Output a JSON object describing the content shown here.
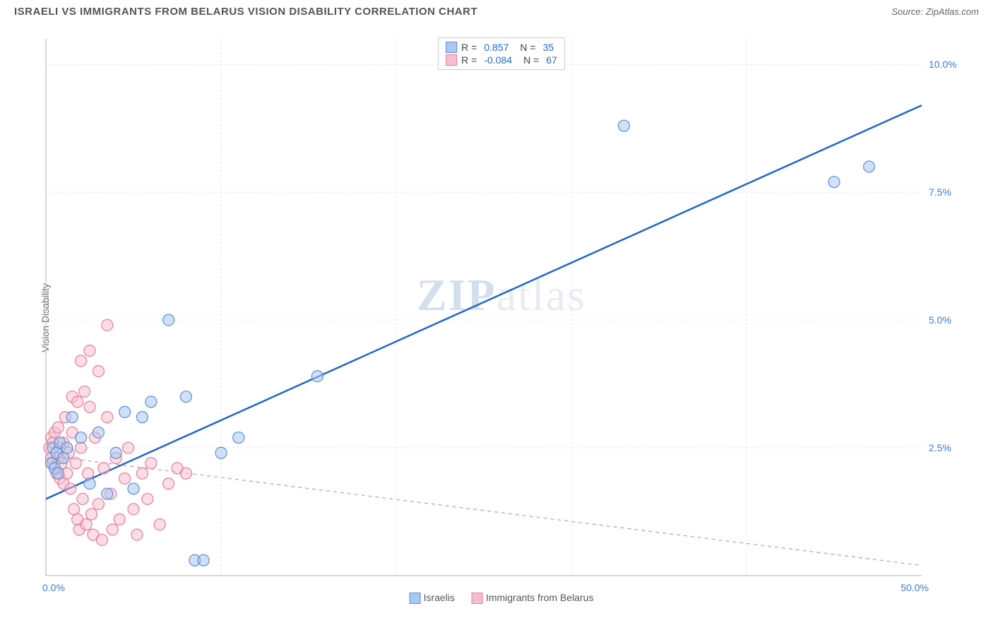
{
  "title": "ISRAELI VS IMMIGRANTS FROM BELARUS VISION DISABILITY CORRELATION CHART",
  "source_label": "Source: ",
  "source_name": "ZipAtlas.com",
  "ylabel": "Vision Disability",
  "watermark": {
    "bold": "ZIP",
    "light": "atlas"
  },
  "chart": {
    "type": "scatter",
    "xlim": [
      0,
      50
    ],
    "ylim": [
      0,
      10.5
    ],
    "x_ticks": [
      0,
      50
    ],
    "x_tick_labels": [
      "0.0%",
      "50.0%"
    ],
    "y_ticks": [
      2.5,
      5.0,
      7.5,
      10.0
    ],
    "y_tick_labels": [
      "2.5%",
      "5.0%",
      "7.5%",
      "10.0%"
    ],
    "grid_color": "#e5e5e5",
    "axis_color": "#cccccc",
    "tick_label_color": "#3b78d8",
    "background": "#ffffff",
    "marker_radius": 8,
    "marker_stroke_width": 1.2,
    "series": [
      {
        "name": "Israelis",
        "fill": "#a9c7f0",
        "stroke": "#5a8fd6",
        "fill_opacity": 0.55,
        "R": "0.857",
        "N": "35",
        "trend": {
          "x1": 0,
          "y1": 1.5,
          "x2": 50,
          "y2": 9.2,
          "color": "#1e66d0",
          "width": 2.5,
          "dash": "none"
        },
        "points": [
          [
            0.3,
            2.2
          ],
          [
            0.4,
            2.5
          ],
          [
            0.5,
            2.1
          ],
          [
            0.6,
            2.4
          ],
          [
            0.7,
            2.0
          ],
          [
            0.8,
            2.6
          ],
          [
            1.0,
            2.3
          ],
          [
            1.2,
            2.5
          ],
          [
            1.5,
            3.1
          ],
          [
            2.0,
            2.7
          ],
          [
            2.5,
            1.8
          ],
          [
            3.0,
            2.8
          ],
          [
            3.5,
            1.6
          ],
          [
            4.0,
            2.4
          ],
          [
            4.5,
            3.2
          ],
          [
            5.0,
            1.7
          ],
          [
            5.5,
            3.1
          ],
          [
            6.0,
            3.4
          ],
          [
            7.0,
            5.0
          ],
          [
            8.0,
            3.5
          ],
          [
            8.5,
            0.3
          ],
          [
            9.0,
            0.3
          ],
          [
            10.0,
            2.4
          ],
          [
            11.0,
            2.7
          ],
          [
            15.5,
            3.9
          ],
          [
            33.0,
            8.8
          ],
          [
            45.0,
            7.7
          ],
          [
            47.0,
            8.0
          ]
        ]
      },
      {
        "name": "Immigrants from Belarus",
        "fill": "#f7bdcb",
        "stroke": "#e77a9a",
        "fill_opacity": 0.5,
        "R": "-0.084",
        "N": "67",
        "trend": {
          "x1": 0,
          "y1": 2.35,
          "x2": 50,
          "y2": 0.2,
          "color": "#e88aa5",
          "width": 1.2,
          "dash": "5,5"
        },
        "points": [
          [
            0.2,
            2.5
          ],
          [
            0.3,
            2.3
          ],
          [
            0.3,
            2.7
          ],
          [
            0.4,
            2.2
          ],
          [
            0.4,
            2.6
          ],
          [
            0.5,
            2.1
          ],
          [
            0.5,
            2.8
          ],
          [
            0.6,
            2.0
          ],
          [
            0.6,
            2.4
          ],
          [
            0.7,
            2.3
          ],
          [
            0.7,
            2.9
          ],
          [
            0.8,
            1.9
          ],
          [
            0.8,
            2.5
          ],
          [
            0.9,
            2.2
          ],
          [
            1.0,
            2.6
          ],
          [
            1.0,
            1.8
          ],
          [
            1.1,
            3.1
          ],
          [
            1.2,
            2.0
          ],
          [
            1.3,
            2.4
          ],
          [
            1.4,
            1.7
          ],
          [
            1.5,
            2.8
          ],
          [
            1.5,
            3.5
          ],
          [
            1.6,
            1.3
          ],
          [
            1.7,
            2.2
          ],
          [
            1.8,
            1.1
          ],
          [
            1.8,
            3.4
          ],
          [
            1.9,
            0.9
          ],
          [
            2.0,
            2.5
          ],
          [
            2.0,
            4.2
          ],
          [
            2.1,
            1.5
          ],
          [
            2.2,
            3.6
          ],
          [
            2.3,
            1.0
          ],
          [
            2.4,
            2.0
          ],
          [
            2.5,
            3.3
          ],
          [
            2.5,
            4.4
          ],
          [
            2.6,
            1.2
          ],
          [
            2.7,
            0.8
          ],
          [
            2.8,
            2.7
          ],
          [
            3.0,
            1.4
          ],
          [
            3.0,
            4.0
          ],
          [
            3.2,
            0.7
          ],
          [
            3.3,
            2.1
          ],
          [
            3.5,
            3.1
          ],
          [
            3.5,
            4.9
          ],
          [
            3.7,
            1.6
          ],
          [
            3.8,
            0.9
          ],
          [
            4.0,
            2.3
          ],
          [
            4.2,
            1.1
          ],
          [
            4.5,
            1.9
          ],
          [
            4.7,
            2.5
          ],
          [
            5.0,
            1.3
          ],
          [
            5.2,
            0.8
          ],
          [
            5.5,
            2.0
          ],
          [
            5.8,
            1.5
          ],
          [
            6.0,
            2.2
          ],
          [
            6.5,
            1.0
          ],
          [
            7.0,
            1.8
          ],
          [
            7.5,
            2.1
          ],
          [
            8.0,
            2.0
          ]
        ]
      }
    ]
  },
  "legend": {
    "bottom_items": [
      "Israelis",
      "Immigrants from Belarus"
    ]
  }
}
